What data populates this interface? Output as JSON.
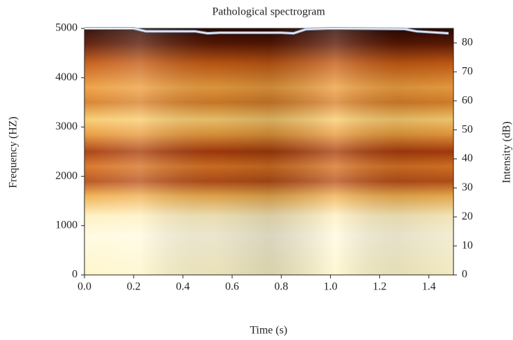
{
  "chart_data": {
    "type": "spectrogram",
    "title": "Pathological spectrogram",
    "x_label": "Time (s)",
    "y_label": "Frequency (HZ)",
    "y2_label": "Intensity (dB)",
    "xlim": [
      0,
      1.5
    ],
    "xticks": [
      {
        "value": 0,
        "label": "0.0"
      },
      0.2,
      0.4,
      0.6,
      0.8,
      {
        "value": 1,
        "label": "1.0"
      },
      1.2,
      1.4
    ],
    "ylim": [
      0,
      5000
    ],
    "yticks": [
      0,
      1000,
      2000,
      3000,
      4000,
      5000
    ],
    "y2lim": [
      0,
      85
    ],
    "y2ticks": [
      0,
      10,
      20,
      30,
      40,
      50,
      60,
      70,
      80
    ],
    "series": [
      {
        "axis": "y2",
        "color": "#e8eefa",
        "x": [
          0,
          0.2,
          0.25,
          0.45,
          0.5,
          0.55,
          0.8,
          0.85,
          0.9,
          1.0,
          1.3,
          1.35,
          1.48
        ],
        "values": [
          85,
          85,
          84,
          84,
          83.3,
          83.5,
          83.5,
          83.3,
          84.7,
          85,
          84.8,
          84,
          83.3
        ]
      }
    ]
  }
}
